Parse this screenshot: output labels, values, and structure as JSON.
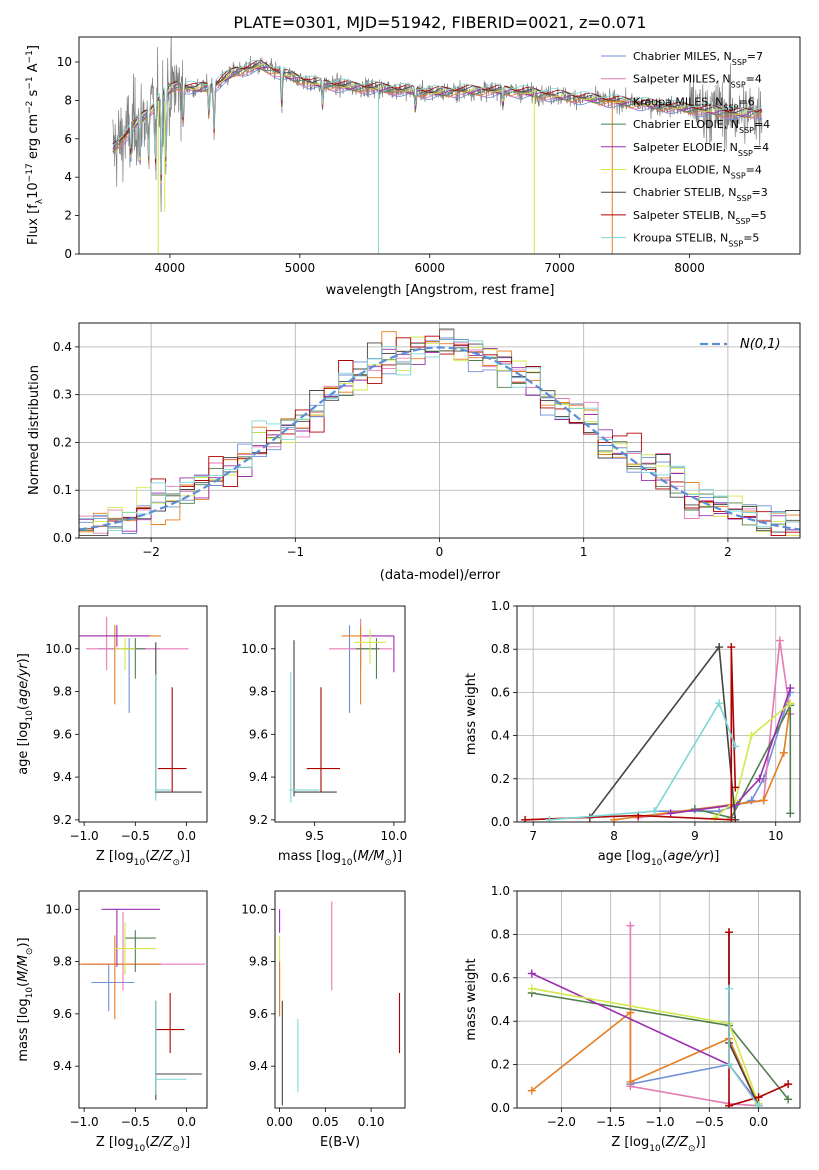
{
  "figure_title": "PLATE=0301, MJD=51942, FIBERID=0021, z=0.071",
  "colors": {
    "Chabrier MILES": "#6f8fd8",
    "Salpeter MILES": "#e67ab5",
    "Kroupa MILES": "#e67e22",
    "Chabrier ELODIE": "#4f7f4f",
    "Salpeter ELODIE": "#9b2fb0",
    "Kroupa ELODIE": "#d3e84a",
    "Chabrier STELIB": "#444444",
    "Salpeter STELIB": "#b00000",
    "Kroupa STELIB": "#7fd6d6",
    "data": "#7f7f7f",
    "gauss": "#5a8fd8"
  },
  "chart_data": [
    {
      "id": "spectrum",
      "type": "line",
      "xlabel": "wavelength [Angstrom, rest frame]",
      "ylabel": "Flux [f_λ 10^-17 erg cm^-2 s^-1 A^-1]",
      "xlim": [
        3300,
        8850
      ],
      "ylim": [
        0,
        11.3
      ],
      "xticks": [
        4000,
        5000,
        6000,
        7000,
        8000
      ],
      "yticks": [
        0,
        2,
        4,
        6,
        8,
        10
      ],
      "grid": false,
      "legend_position": "right",
      "legend": [
        {
          "name": "Chabrier MILES",
          "nssp": "7"
        },
        {
          "name": "Salpeter MILES",
          "nssp": "4"
        },
        {
          "name": "Kroupa MILES",
          "nssp": "6"
        },
        {
          "name": "Chabrier ELODIE",
          "nssp": "4"
        },
        {
          "name": "Salpeter ELODIE",
          "nssp": "4"
        },
        {
          "name": "Kroupa ELODIE",
          "nssp": "4"
        },
        {
          "name": "Chabrier STELIB",
          "nssp": "3"
        },
        {
          "name": "Salpeter STELIB",
          "nssp": "5"
        },
        {
          "name": "Kroupa STELIB",
          "nssp": "5"
        }
      ],
      "continuum": [
        [
          3560,
          5.5
        ],
        [
          3650,
          6.1
        ],
        [
          3750,
          6.9
        ],
        [
          3850,
          7.5
        ],
        [
          3950,
          8.3
        ],
        [
          4050,
          8.8
        ],
        [
          4200,
          8.6
        ],
        [
          4350,
          8.8
        ],
        [
          4500,
          9.5
        ],
        [
          4700,
          9.8
        ],
        [
          4900,
          9.3
        ],
        [
          5100,
          8.9
        ],
        [
          5400,
          8.7
        ],
        [
          5700,
          8.6
        ],
        [
          6000,
          8.4
        ],
        [
          6300,
          8.5
        ],
        [
          6600,
          8.5
        ],
        [
          6900,
          8.3
        ],
        [
          7200,
          8.1
        ],
        [
          7500,
          7.9
        ],
        [
          7800,
          7.7
        ],
        [
          8100,
          7.5
        ],
        [
          8400,
          7.3
        ],
        [
          8550,
          7.4
        ]
      ],
      "absorption_lines": [
        [
          3700,
          1.5
        ],
        [
          3770,
          2.2
        ],
        [
          3835,
          2.5
        ],
        [
          3889,
          3.2
        ],
        [
          3933,
          4.5
        ],
        [
          3969,
          3.8
        ],
        [
          4102,
          2.0
        ],
        [
          4300,
          1.6
        ],
        [
          4340,
          2.5
        ],
        [
          4861,
          1.8
        ],
        [
          5175,
          1.2
        ],
        [
          5890,
          1.0
        ],
        [
          6563,
          0.8
        ]
      ],
      "drops": [
        [
          3910,
          0.0
        ],
        [
          3960,
          2.2
        ],
        [
          5605,
          0.0
        ],
        [
          6805,
          0.0
        ],
        [
          7405,
          0.0
        ]
      ]
    },
    {
      "id": "residuals",
      "type": "step",
      "xlabel": "(data-model)/error",
      "ylabel": "Normed distribution",
      "xlim": [
        -2.5,
        2.5
      ],
      "ylim": [
        0,
        0.45
      ],
      "xticks": [
        -2,
        -1,
        0,
        1,
        2
      ],
      "yticks": [
        0.0,
        0.1,
        0.2,
        0.3,
        0.4
      ],
      "grid": true,
      "gauss_label": "N(0,1)",
      "bin_width": 0.1
    },
    {
      "id": "age_vs_Z",
      "type": "errorbar",
      "xlabel": "Z [log10(Z/Z⊙)]",
      "ylabel": "age [log10(age/yr)]",
      "xlim": [
        -1.05,
        0.2
      ],
      "ylim": [
        9.19,
        10.2
      ],
      "xticks": [
        -1.0,
        -0.5,
        0.0
      ],
      "yticks": [
        9.2,
        9.4,
        9.6,
        9.8,
        10.0
      ],
      "points": [
        {
          "s": "Chabrier MILES",
          "x": -0.56,
          "xe": [
            0.3,
            0.3
          ],
          "y": 10.0,
          "ye": [
            0.3,
            0.05
          ]
        },
        {
          "s": "Salpeter MILES",
          "x": -0.78,
          "xe": [
            0.2,
            0.8
          ],
          "y": 10.0,
          "ye": [
            0.1,
            0.15
          ]
        },
        {
          "s": "Kroupa MILES",
          "x": -0.7,
          "xe": [
            0.35,
            0.45
          ],
          "y": 10.06,
          "ye": [
            0.32,
            0.05
          ]
        },
        {
          "s": "Chabrier ELODIE",
          "x": -0.5,
          "xe": [
            0.1,
            0.1
          ],
          "y": 10.0,
          "ye": [
            0.14,
            0.05
          ]
        },
        {
          "s": "Salpeter ELODIE",
          "x": -0.68,
          "xe": [
            0.36,
            0.32
          ],
          "y": 10.06,
          "ye": [
            0.05,
            0.05
          ]
        },
        {
          "s": "Kroupa ELODIE",
          "x": -0.6,
          "xe": [
            0.1,
            0.1
          ],
          "y": 10.0,
          "ye": [
            0.1,
            0.05
          ]
        },
        {
          "s": "Chabrier STELIB",
          "x": -0.3,
          "xe": [
            0.01,
            0.45
          ],
          "y": 9.33,
          "ye": [
            0.01,
            0.7
          ]
        },
        {
          "s": "Salpeter STELIB",
          "x": -0.14,
          "xe": [
            0.14,
            0.14
          ],
          "y": 9.44,
          "ye": [
            0.11,
            0.38
          ]
        },
        {
          "s": "Kroupa STELIB",
          "x": -0.3,
          "xe": [
            0.01,
            0.15
          ],
          "y": 9.34,
          "ye": [
            0.05,
            0.54
          ]
        }
      ]
    },
    {
      "id": "age_vs_mass",
      "type": "errorbar",
      "xlabel": "mass [log10(M/M⊙)]",
      "ylabel": "",
      "xlim": [
        9.25,
        10.07
      ],
      "ylim": [
        9.19,
        10.2
      ],
      "xticks": [
        9.5,
        10.0
      ],
      "yticks": [
        9.2,
        9.4,
        9.6,
        9.8,
        10.0
      ],
      "points": [
        {
          "s": "Chabrier MILES",
          "x": 9.72,
          "xe": [
            0.0,
            0.16
          ],
          "y": 10.0,
          "ye": [
            0.3,
            0.11
          ]
        },
        {
          "s": "Salpeter MILES",
          "x": 9.79,
          "xe": [
            0.2,
            0.2
          ],
          "y": 10.0,
          "ye": [
            0.1,
            0.14
          ]
        },
        {
          "s": "Kroupa MILES",
          "x": 9.79,
          "xe": [
            0.12,
            0.1
          ],
          "y": 10.06,
          "ye": [
            0.32,
            0.05
          ]
        },
        {
          "s": "Chabrier ELODIE",
          "x": 9.89,
          "xe": [
            0.13,
            0.02
          ],
          "y": 10.0,
          "ye": [
            0.14,
            0.05
          ]
        },
        {
          "s": "Salpeter ELODIE",
          "x": 10.0,
          "xe": [
            0.2,
            0.0
          ],
          "y": 10.06,
          "ye": [
            0.17,
            0.0
          ]
        },
        {
          "s": "Kroupa ELODIE",
          "x": 9.85,
          "xe": [
            0.1,
            0.1
          ],
          "y": 10.03,
          "ye": [
            0.1,
            0.06
          ]
        },
        {
          "s": "Chabrier STELIB",
          "x": 9.37,
          "xe": [
            0.0,
            0.27
          ],
          "y": 9.33,
          "ye": [
            0.02,
            0.71
          ]
        },
        {
          "s": "Salpeter STELIB",
          "x": 9.54,
          "xe": [
            0.09,
            0.12
          ],
          "y": 9.44,
          "ye": [
            0.11,
            0.38
          ]
        },
        {
          "s": "Kroupa STELIB",
          "x": 9.35,
          "xe": [
            0.01,
            0.18
          ],
          "y": 9.34,
          "ye": [
            0.06,
            0.55
          ]
        }
      ]
    },
    {
      "id": "weight_vs_age",
      "type": "line",
      "xlabel": "age [log10(age/yr)]",
      "ylabel": "mass weight",
      "xlim": [
        6.8,
        10.3
      ],
      "ylim": [
        0,
        1.0
      ],
      "xticks": [
        7,
        8,
        9,
        10
      ],
      "yticks": [
        0.0,
        0.2,
        0.4,
        0.6,
        0.8,
        1.0
      ],
      "grid": true,
      "series": [
        {
          "s": "Chabrier MILES",
          "x": [
            8.5,
            9.3,
            9.7,
            9.85,
            10.18
          ],
          "y": [
            0.05,
            0.05,
            0.1,
            0.2,
            0.6
          ]
        },
        {
          "s": "Salpeter MILES",
          "x": [
            8.3,
            9.5,
            9.85,
            10.05,
            10.18
          ],
          "y": [
            0.02,
            0.08,
            0.1,
            0.84,
            0.5
          ]
        },
        {
          "s": "Kroupa MILES",
          "x": [
            8.0,
            9.45,
            9.85,
            10.1,
            10.18
          ],
          "y": [
            0.01,
            0.08,
            0.1,
            0.32,
            0.55
          ]
        },
        {
          "s": "Chabrier ELODIE",
          "x": [
            9.0,
            9.45,
            10.18,
            10.18
          ],
          "y": [
            0.06,
            0.02,
            0.54,
            0.04
          ]
        },
        {
          "s": "Salpeter ELODIE",
          "x": [
            8.7,
            9.5,
            9.8,
            10.18
          ],
          "y": [
            0.04,
            0.08,
            0.2,
            0.62
          ]
        },
        {
          "s": "Kroupa ELODIE",
          "x": [
            9.25,
            9.5,
            9.7,
            10.18
          ],
          "y": [
            0.02,
            0.1,
            0.4,
            0.55
          ]
        },
        {
          "s": "Chabrier STELIB",
          "x": [
            7.7,
            9.3,
            9.5
          ],
          "y": [
            0.02,
            0.81,
            0.01
          ]
        },
        {
          "s": "Salpeter STELIB",
          "x": [
            6.9,
            8.3,
            9.45,
            9.45,
            9.5
          ],
          "y": [
            0.01,
            0.03,
            0.01,
            0.81,
            0.16
          ]
        },
        {
          "s": "Kroupa STELIB",
          "x": [
            7.2,
            8.5,
            9.3,
            9.5
          ],
          "y": [
            0.01,
            0.05,
            0.55,
            0.35
          ]
        }
      ]
    },
    {
      "id": "mass_vs_Z",
      "type": "errorbar",
      "xlabel": "Z [log10(Z/Z⊙)]",
      "ylabel": "mass [log10(M/M⊙)]",
      "xlim": [
        -1.05,
        0.2
      ],
      "ylim": [
        9.24,
        10.07
      ],
      "xticks": [
        -1.0,
        -0.5,
        0.0
      ],
      "yticks": [
        9.4,
        9.6,
        9.8,
        10.0
      ],
      "points": [
        {
          "s": "Chabrier MILES",
          "x": -0.76,
          "xe": [
            0.17,
            0.25
          ],
          "y": 9.72,
          "ye": [
            0.11,
            0.07
          ]
        },
        {
          "s": "Salpeter MILES",
          "x": -0.62,
          "xe": [
            0.4,
            0.8
          ],
          "y": 9.79,
          "ye": [
            0.1,
            0.2
          ]
        },
        {
          "s": "Kroupa MILES",
          "x": -0.7,
          "xe": [
            0.35,
            0.45
          ],
          "y": 9.79,
          "ye": [
            0.21,
            0.11
          ]
        },
        {
          "s": "Chabrier ELODIE",
          "x": -0.5,
          "xe": [
            0.1,
            0.2
          ],
          "y": 9.89,
          "ye": [
            0.13,
            0.03
          ]
        },
        {
          "s": "Salpeter ELODIE",
          "x": -0.68,
          "xe": [
            0.15,
            0.42
          ],
          "y": 10.0,
          "ye": [
            0.22,
            0.0
          ]
        },
        {
          "s": "Kroupa ELODIE",
          "x": -0.6,
          "xe": [
            0.1,
            0.3
          ],
          "y": 9.85,
          "ye": [
            0.1,
            0.1
          ]
        },
        {
          "s": "Chabrier STELIB",
          "x": -0.3,
          "xe": [
            0.01,
            0.45
          ],
          "y": 9.37,
          "ye": [
            0.1,
            0.28
          ]
        },
        {
          "s": "Salpeter STELIB",
          "x": -0.16,
          "xe": [
            0.14,
            0.14
          ],
          "y": 9.54,
          "ye": [
            0.09,
            0.14
          ]
        },
        {
          "s": "Kroupa STELIB",
          "x": -0.3,
          "xe": [
            0.01,
            0.3
          ],
          "y": 9.35,
          "ye": [
            0.06,
            0.3
          ]
        }
      ]
    },
    {
      "id": "mass_vs_ebv",
      "type": "errorbar",
      "xlabel": "E(B-V)",
      "ylabel": "",
      "xlim": [
        -0.005,
        0.137
      ],
      "ylim": [
        9.24,
        10.07
      ],
      "xticks": [
        0.0,
        0.05,
        0.1
      ],
      "yticks": [
        9.4,
        9.6,
        9.8,
        10.0
      ],
      "points": [
        {
          "s": "Salpeter ELODIE",
          "x": 0.0,
          "y": 9.96,
          "ye": [
            0.05,
            0.04
          ]
        },
        {
          "s": "Kroupa ELODIE",
          "x": 0.0,
          "y": 9.8,
          "ye": [
            0.2,
            0.1
          ]
        },
        {
          "s": "Kroupa MILES",
          "x": 0.0,
          "y": 9.72,
          "ye": [
            0.13,
            0.08
          ]
        },
        {
          "s": "Chabrier STELIB",
          "x": 0.003,
          "y": 9.47,
          "ye": [
            0.22,
            0.18
          ]
        },
        {
          "s": "Kroupa STELIB",
          "x": 0.02,
          "y": 9.44,
          "ye": [
            0.14,
            0.14
          ]
        },
        {
          "s": "Salpeter MILES",
          "x": 0.057,
          "y": 9.86,
          "ye": [
            0.17,
            0.17
          ]
        },
        {
          "s": "Salpeter STELIB",
          "x": 0.131,
          "y": 9.56,
          "ye": [
            0.11,
            0.12
          ]
        }
      ]
    },
    {
      "id": "weight_vs_Z",
      "type": "line",
      "xlabel": "Z [log10(Z/Z⊙)]",
      "ylabel": "mass weight",
      "xlim": [
        -2.45,
        0.42
      ],
      "ylim": [
        0,
        1.0
      ],
      "xticks": [
        -2.0,
        -1.5,
        -1.0,
        -0.5,
        0.0
      ],
      "yticks": [
        0.0,
        0.2,
        0.4,
        0.6,
        0.8,
        1.0
      ],
      "grid": true,
      "series": [
        {
          "s": "Chabrier MILES",
          "x": [
            -1.3,
            -0.3,
            0.0
          ],
          "y": [
            0.11,
            0.2,
            0.02
          ]
        },
        {
          "s": "Salpeter MILES",
          "x": [
            -1.3,
            -1.3,
            -0.3,
            0.0
          ],
          "y": [
            0.84,
            0.1,
            0.02,
            0.01
          ]
        },
        {
          "s": "Kroupa MILES",
          "x": [
            -2.3,
            -1.3,
            -1.3,
            -0.3,
            0.0
          ],
          "y": [
            0.08,
            0.44,
            0.12,
            0.32,
            0.01
          ]
        },
        {
          "s": "Chabrier ELODIE",
          "x": [
            -2.3,
            -0.3,
            0.3
          ],
          "y": [
            0.53,
            0.38,
            0.04
          ]
        },
        {
          "s": "Salpeter ELODIE",
          "x": [
            -2.3,
            -0.3,
            0.0
          ],
          "y": [
            0.62,
            0.2,
            0.02
          ]
        },
        {
          "s": "Kroupa ELODIE",
          "x": [
            -2.3,
            -0.3,
            0.0
          ],
          "y": [
            0.55,
            0.39,
            0.02
          ]
        },
        {
          "s": "Chabrier STELIB",
          "x": [
            -0.3,
            -0.3,
            0.0
          ],
          "y": [
            0.81,
            0.3,
            0.01
          ]
        },
        {
          "s": "Salpeter STELIB",
          "x": [
            -0.3,
            -0.3,
            0.0,
            0.3
          ],
          "y": [
            0.81,
            0.01,
            0.05,
            0.11
          ]
        },
        {
          "s": "Kroupa STELIB",
          "x": [
            -0.3,
            -0.3,
            0.0
          ],
          "y": [
            0.55,
            0.2,
            0.01
          ]
        }
      ]
    }
  ]
}
